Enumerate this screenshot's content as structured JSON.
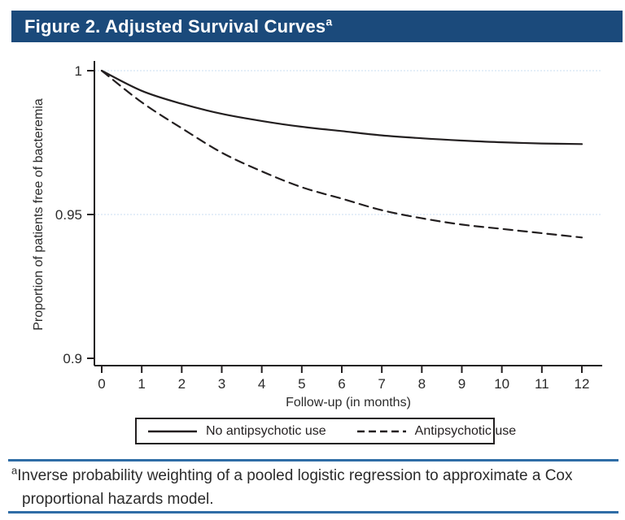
{
  "header": {
    "title": "Figure 2. Adjusted Survival Curves",
    "title_superscript": "a",
    "bar_color": "#1b4a7b"
  },
  "chart_data": {
    "type": "line",
    "title": "",
    "xlabel": "Follow-up (in months)",
    "ylabel": "Proportion of patients free of bacteremia",
    "xlim": [
      0,
      12
    ],
    "ylim": [
      0.9,
      1.0
    ],
    "x_ticks": [
      0,
      1,
      2,
      3,
      4,
      5,
      6,
      7,
      8,
      9,
      10,
      11,
      12
    ],
    "y_ticks": [
      {
        "value": 1.0,
        "label": "1",
        "grid": true
      },
      {
        "value": 0.95,
        "label": "0.95",
        "grid": true
      },
      {
        "value": 0.9,
        "label": "0.9",
        "grid": false
      }
    ],
    "grid": "horizontal, light-blue dotted at y=1 and y=0.95",
    "legend_position": "bottom-outside-box",
    "x": [
      0,
      1,
      2,
      3,
      4,
      5,
      6,
      7,
      8,
      9,
      10,
      11,
      12
    ],
    "series": [
      {
        "name": "No antipsychotic use",
        "style": "solid",
        "color": "#231f20",
        "values": [
          1.0,
          0.993,
          0.9885,
          0.985,
          0.9825,
          0.9805,
          0.979,
          0.9775,
          0.9765,
          0.9757,
          0.9751,
          0.9747,
          0.9745
        ]
      },
      {
        "name": "Antipsychotic use",
        "style": "dashed",
        "color": "#231f20",
        "values": [
          1.0,
          0.989,
          0.98,
          0.9715,
          0.965,
          0.9595,
          0.9555,
          0.9515,
          0.9487,
          0.9465,
          0.945,
          0.9435,
          0.942
        ]
      }
    ]
  },
  "legend": {
    "items": [
      {
        "label": "No antipsychotic use",
        "line": "solid"
      },
      {
        "label": "Antipsychotic use",
        "line": "dashed"
      }
    ]
  },
  "footnote": {
    "superscript": "a",
    "text": "Inverse probability weighting of a pooled logistic regression to approximate a Cox proportional hazards model.",
    "rule_color": "#2f6da6"
  }
}
